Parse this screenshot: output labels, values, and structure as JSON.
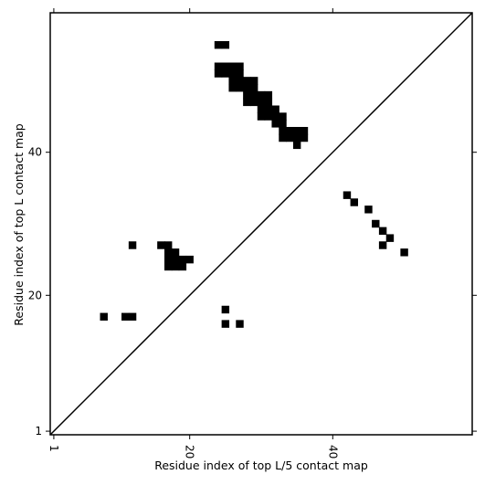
{
  "chart_data": {
    "type": "heatmap",
    "title": "",
    "xlabel": "Residue index of top L/5 contact map",
    "ylabel": "Residue index of top L contact map",
    "xlim": [
      0.5,
      59.5
    ],
    "ylim": [
      0.5,
      59.5
    ],
    "x_ticks": [
      {
        "value": 1,
        "label": "1"
      },
      {
        "value": 20,
        "label": "20"
      },
      {
        "value": 40,
        "label": "40"
      }
    ],
    "y_ticks": [
      {
        "value": 1,
        "label": "1"
      },
      {
        "value": 20,
        "label": "20"
      },
      {
        "value": 40,
        "label": "40"
      }
    ],
    "grid": false,
    "diagonal_line": true,
    "cell_color": "#000000",
    "background_color": "#ffffff",
    "cells": [
      [
        24,
        55
      ],
      [
        25,
        55
      ],
      [
        24,
        52
      ],
      [
        25,
        52
      ],
      [
        26,
        52
      ],
      [
        27,
        52
      ],
      [
        24,
        51
      ],
      [
        25,
        51
      ],
      [
        26,
        51
      ],
      [
        27,
        51
      ],
      [
        26,
        50
      ],
      [
        27,
        50
      ],
      [
        28,
        50
      ],
      [
        29,
        50
      ],
      [
        26,
        49
      ],
      [
        27,
        49
      ],
      [
        28,
        49
      ],
      [
        29,
        49
      ],
      [
        28,
        48
      ],
      [
        29,
        48
      ],
      [
        30,
        48
      ],
      [
        31,
        48
      ],
      [
        28,
        47
      ],
      [
        29,
        47
      ],
      [
        30,
        47
      ],
      [
        31,
        47
      ],
      [
        30,
        46
      ],
      [
        31,
        46
      ],
      [
        32,
        46
      ],
      [
        30,
        45
      ],
      [
        31,
        45
      ],
      [
        32,
        45
      ],
      [
        33,
        45
      ],
      [
        32,
        44
      ],
      [
        33,
        44
      ],
      [
        33,
        43
      ],
      [
        34,
        43
      ],
      [
        35,
        43
      ],
      [
        36,
        43
      ],
      [
        33,
        42
      ],
      [
        34,
        42
      ],
      [
        35,
        42
      ],
      [
        36,
        42
      ],
      [
        35,
        41
      ],
      [
        42,
        34
      ],
      [
        43,
        33
      ],
      [
        45,
        32
      ],
      [
        46,
        30
      ],
      [
        47,
        29
      ],
      [
        48,
        28
      ],
      [
        47,
        27
      ],
      [
        50,
        26
      ],
      [
        12,
        27
      ],
      [
        16,
        27
      ],
      [
        17,
        27
      ],
      [
        17,
        26
      ],
      [
        18,
        26
      ],
      [
        17,
        25
      ],
      [
        18,
        25
      ],
      [
        19,
        25
      ],
      [
        20,
        25
      ],
      [
        17,
        24
      ],
      [
        18,
        24
      ],
      [
        19,
        24
      ],
      [
        8,
        17
      ],
      [
        11,
        17
      ],
      [
        12,
        17
      ],
      [
        25,
        18
      ],
      [
        25,
        16
      ],
      [
        27,
        16
      ]
    ]
  }
}
